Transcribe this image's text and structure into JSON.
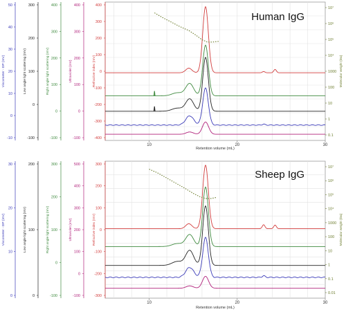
{
  "colors": {
    "viscometer": "#3a3ab8",
    "low_angle": "#222222",
    "right_angle": "#3f8a3f",
    "uv": "#b0207a",
    "ri": "#d23c3c",
    "mw": "#6a7a2a",
    "grid": "#e2e2e2",
    "axis": "#777777"
  },
  "x_axis": {
    "label": "Retention volume (mL)",
    "min": 5,
    "max": 30,
    "ticks": [
      10,
      20,
      30
    ]
  },
  "y_axes": [
    {
      "key": "visc",
      "label": "Viscometer - DP (mV)",
      "color_key": "viscometer",
      "ticks_top": [
        50,
        40,
        30,
        20,
        10,
        0,
        -10
      ],
      "ticks_bottom": [
        30,
        20,
        10,
        0
      ]
    },
    {
      "key": "lals",
      "label": "Low angle light scattering (mV)",
      "color_key": "low_angle",
      "ticks_top": [
        300,
        200,
        100,
        0,
        -100
      ],
      "ticks_bottom": [
        200,
        100,
        0
      ]
    },
    {
      "key": "rals",
      "label": "Right angle light scattering (mV)",
      "color_key": "right_angle",
      "ticks_top": [
        400,
        300,
        200,
        100,
        0,
        -100
      ],
      "ticks_bottom": [
        300,
        200,
        100,
        0,
        -100
      ]
    },
    {
      "key": "uv",
      "label": "Ultraviolet (mV)",
      "color_key": "uv",
      "ticks_top": [
        400,
        300,
        200,
        100,
        0,
        -100
      ],
      "ticks_bottom": [
        500,
        400,
        300,
        200,
        100,
        0,
        -100
      ]
    },
    {
      "key": "ri",
      "label": "Refractive index (mV)",
      "color_key": "ri",
      "ticks_top": [
        400,
        300,
        200,
        100,
        0,
        -100,
        -200,
        -300,
        -400
      ],
      "ticks_bottom": [
        300,
        200,
        100,
        0,
        -100,
        -200,
        -300
      ]
    }
  ],
  "mw_axis": {
    "label": "Molecular weight (Da)",
    "ticks_top": [
      "10⁷",
      "10⁶",
      "10⁵",
      "10⁴",
      "1000",
      "100",
      "10",
      "1",
      "0.1"
    ],
    "ticks_bottom": [
      "10⁷",
      "10⁶",
      "10⁵",
      "10⁴",
      "1000",
      "100",
      "10",
      "1",
      "0.1",
      "0.01"
    ]
  },
  "chart_data": [
    {
      "type": "line",
      "title": "Human IgG",
      "xlabel": "Retention volume (mL)",
      "ylabel": "Refractive index (mV)",
      "xlim": [
        5,
        30
      ],
      "ylim": [
        -440,
        460
      ],
      "series": [
        {
          "key": "ri",
          "baseline": 0,
          "color_key": "ri",
          "peaks": [
            {
              "x": 16.4,
              "h": 430,
              "w": 0.32
            },
            {
              "x": 14.5,
              "h": 30,
              "w": 0.35
            },
            {
              "x": 24.3,
              "h": 22,
              "w": 0.15
            },
            {
              "x": 23.0,
              "h": 8,
              "w": 0.15
            }
          ]
        },
        {
          "key": "rals",
          "baseline": -150,
          "color_key": "right_angle",
          "peaks": [
            {
              "x": 16.4,
              "h": 330,
              "w": 0.32
            },
            {
              "x": 14.6,
              "h": 80,
              "w": 0.45
            },
            {
              "x": 13.2,
              "h": 20,
              "w": 0.6
            }
          ],
          "spike_x": 10.6
        },
        {
          "key": "lals",
          "baseline": -250,
          "color_key": "low_angle",
          "peaks": [
            {
              "x": 16.4,
              "h": 350,
              "w": 0.32
            },
            {
              "x": 14.6,
              "h": 80,
              "w": 0.45
            },
            {
              "x": 13.2,
              "h": 20,
              "w": 0.6
            }
          ],
          "spike_x": 10.6
        },
        {
          "key": "visc",
          "baseline": -340,
          "color_key": "viscometer",
          "peaks": [
            {
              "x": 16.4,
              "h": 240,
              "w": 0.32
            },
            {
              "x": 14.6,
              "h": 60,
              "w": 0.45
            },
            {
              "x": 23.0,
              "h": 6,
              "w": 0.15
            }
          ]
        },
        {
          "key": "uv",
          "baseline": -400,
          "color_key": "uv",
          "peaks": [
            {
              "x": 16.4,
              "h": 80,
              "w": 0.35
            },
            {
              "x": 14.6,
              "h": 15,
              "w": 0.4
            }
          ]
        }
      ],
      "mw_curve": {
        "color_key": "mw",
        "x": [
          10.6,
          11.5,
          12.5,
          13.5,
          14.5,
          15.3,
          16.0,
          16.6,
          17.2,
          18.0
        ],
        "y": [
          390,
          360,
          330,
          300,
          275,
          245,
          215,
          200,
          200,
          205
        ]
      }
    },
    {
      "type": "line",
      "title": "Sheep IgG",
      "xlabel": "Retention volume (mL)",
      "ylabel": "Refractive index (mV)",
      "xlim": [
        5,
        30
      ],
      "ylim": [
        -350,
        340
      ],
      "series": [
        {
          "key": "ri",
          "baseline": 0,
          "color_key": "ri",
          "peaks": [
            {
              "x": 16.4,
              "h": 320,
              "w": 0.32
            },
            {
              "x": 14.5,
              "h": 25,
              "w": 0.35
            },
            {
              "x": 23.0,
              "h": 20,
              "w": 0.15
            },
            {
              "x": 24.3,
              "h": 18,
              "w": 0.15
            }
          ]
        },
        {
          "key": "rals",
          "baseline": -90,
          "color_key": "right_angle",
          "peaks": [
            {
              "x": 16.4,
              "h": 300,
              "w": 0.32
            },
            {
              "x": 14.6,
              "h": 60,
              "w": 0.45
            },
            {
              "x": 13.2,
              "h": 15,
              "w": 0.6
            }
          ]
        },
        {
          "key": "lals",
          "baseline": -185,
          "color_key": "low_angle",
          "peaks": [
            {
              "x": 16.4,
              "h": 300,
              "w": 0.32
            },
            {
              "x": 14.6,
              "h": 75,
              "w": 0.45
            },
            {
              "x": 13.2,
              "h": 20,
              "w": 0.6
            }
          ]
        },
        {
          "key": "visc",
          "baseline": -245,
          "color_key": "viscometer",
          "peaks": [
            {
              "x": 16.4,
              "h": 200,
              "w": 0.32
            },
            {
              "x": 14.6,
              "h": 50,
              "w": 0.45
            },
            {
              "x": 23.0,
              "h": 8,
              "w": 0.15
            }
          ]
        },
        {
          "key": "uv",
          "baseline": -300,
          "color_key": "uv",
          "peaks": [
            {
              "x": 16.4,
              "h": 60,
              "w": 0.35
            },
            {
              "x": 14.6,
              "h": 12,
              "w": 0.4
            }
          ]
        }
      ],
      "mw_curve": {
        "color_key": "mw",
        "x": [
          10.0,
          11.0,
          12.0,
          13.0,
          14.0,
          15.0,
          15.8,
          16.4,
          17.0,
          17.6
        ],
        "y": [
          300,
          280,
          255,
          230,
          205,
          178,
          160,
          152,
          152,
          157
        ]
      }
    }
  ]
}
